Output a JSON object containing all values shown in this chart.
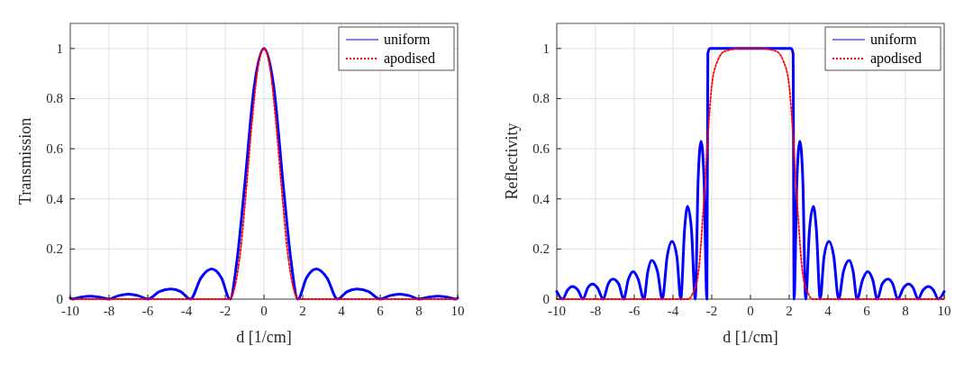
{
  "chart_data": [
    {
      "type": "line",
      "xlabel": "d [1/cm]",
      "ylabel": "Transmission",
      "xlim": [
        -10,
        10
      ],
      "xticks": [
        -10,
        -8,
        -6,
        -4,
        -2,
        0,
        2,
        4,
        6,
        8,
        10
      ],
      "ylim": [
        0,
        1.1
      ],
      "yticks": [
        0,
        0.2,
        0.4,
        0.6,
        0.8,
        1
      ],
      "grid": true,
      "legend": "top right",
      "series": [
        {
          "name": "uniform",
          "color": "#0000ff",
          "line_style": "solid",
          "x": [
            -10,
            -9.9,
            -9.45,
            -9,
            -8.5,
            -8,
            -7.5,
            -7,
            -6.5,
            -6,
            -5.4,
            -4.8,
            -4.3,
            -3.8,
            -3.25,
            -2.7,
            -2.2,
            -1.75,
            -1.4,
            -1,
            -0.5,
            0,
            0.5,
            1,
            1.4,
            1.75,
            2.2,
            2.7,
            3.25,
            3.8,
            4.3,
            4.8,
            5.4,
            6,
            6.5,
            7,
            7.5,
            8,
            8.5,
            9,
            9.45,
            9.9,
            10
          ],
          "values": [
            0.005,
            0,
            0.008,
            0.012,
            0.008,
            0,
            0.014,
            0.02,
            0.014,
            0,
            0.03,
            0.04,
            0.03,
            0,
            0.085,
            0.12,
            0.085,
            0,
            0.15,
            0.45,
            0.85,
            1,
            0.85,
            0.45,
            0.15,
            0,
            0.085,
            0.12,
            0.085,
            0,
            0.03,
            0.04,
            0.03,
            0,
            0.014,
            0.02,
            0.014,
            0,
            0.008,
            0.012,
            0.008,
            0,
            0.005
          ]
        },
        {
          "name": "apodised",
          "color": "#ff0000",
          "line_style": "dotted",
          "x": [
            -10,
            -1.8,
            -1.5,
            -1.2,
            -0.9,
            -0.6,
            -0.3,
            0,
            0.3,
            0.6,
            0.9,
            1.2,
            1.5,
            1.8,
            10
          ],
          "values": [
            0,
            0,
            0.05,
            0.2,
            0.45,
            0.72,
            0.93,
            1,
            0.93,
            0.72,
            0.45,
            0.2,
            0.05,
            0,
            0
          ]
        }
      ]
    },
    {
      "type": "line",
      "xlabel": "d [1/cm]",
      "ylabel": "Reflectivity",
      "xlim": [
        -10,
        10
      ],
      "xticks": [
        -10,
        -8,
        -6,
        -4,
        -2,
        0,
        2,
        4,
        6,
        8,
        10
      ],
      "ylim": [
        0,
        1.1
      ],
      "yticks": [
        0,
        0.2,
        0.4,
        0.6,
        0.8,
        1
      ],
      "grid": true,
      "legend": "top right",
      "series": [
        {
          "name": "uniform",
          "color": "#0000ff",
          "line_style": "solid",
          "x": [
            -10,
            -9.7,
            -9.45,
            -9.2,
            -8.9,
            -8.65,
            -8.4,
            -8.15,
            -7.9,
            -7.6,
            -7.35,
            -7.1,
            -6.8,
            -6.55,
            -6.3,
            -6.05,
            -5.8,
            -5.5,
            -5.3,
            -5.1,
            -4.8,
            -4.55,
            -4.3,
            -4.05,
            -3.8,
            -3.6,
            -3.4,
            -3.25,
            -3.05,
            -2.85,
            -2.7,
            -2.55,
            -2.4,
            -2.25,
            -2.2,
            -2.1,
            0,
            2.1,
            2.2,
            2.25,
            2.4,
            2.55,
            2.7,
            2.85,
            3.05,
            3.25,
            3.4,
            3.6,
            3.8,
            4.05,
            4.3,
            4.55,
            4.8,
            5.1,
            5.3,
            5.5,
            5.8,
            6.05,
            6.3,
            6.55,
            6.8,
            7.1,
            7.35,
            7.6,
            7.9,
            8.15,
            8.4,
            8.65,
            8.9,
            9.2,
            9.45,
            9.7,
            10
          ],
          "values": [
            0.03,
            0,
            0.035,
            0.05,
            0.035,
            0,
            0.045,
            0.06,
            0.045,
            0,
            0.06,
            0.08,
            0.06,
            0,
            0.08,
            0.11,
            0.08,
            0,
            0.11,
            0.155,
            0.11,
            0,
            0.17,
            0.23,
            0.17,
            0,
            0.28,
            0.37,
            0.28,
            0,
            0.48,
            0.63,
            0.48,
            0,
            0.98,
            1,
            1,
            1,
            0.98,
            0,
            0.48,
            0.63,
            0.48,
            0,
            0.28,
            0.37,
            0.28,
            0,
            0.17,
            0.23,
            0.17,
            0,
            0.11,
            0.155,
            0.11,
            0,
            0.08,
            0.11,
            0.08,
            0,
            0.06,
            0.08,
            0.06,
            0,
            0.045,
            0.06,
            0.045,
            0,
            0.035,
            0.05,
            0.035,
            0,
            0.03
          ]
        },
        {
          "name": "apodised",
          "color": "#ff0000",
          "line_style": "dotted",
          "x": [
            -10,
            -3.2,
            -3,
            -2.7,
            -2.4,
            -2.2,
            -2,
            -1.7,
            -1.3,
            -0.5,
            0,
            0.5,
            1.3,
            1.7,
            2,
            2.2,
            2.4,
            2.7,
            3,
            3.2,
            10
          ],
          "values": [
            0,
            0,
            0.02,
            0.1,
            0.4,
            0.65,
            0.85,
            0.95,
            0.99,
            1,
            1,
            1,
            0.99,
            0.95,
            0.85,
            0.65,
            0.4,
            0.1,
            0.02,
            0,
            0
          ]
        }
      ]
    }
  ]
}
